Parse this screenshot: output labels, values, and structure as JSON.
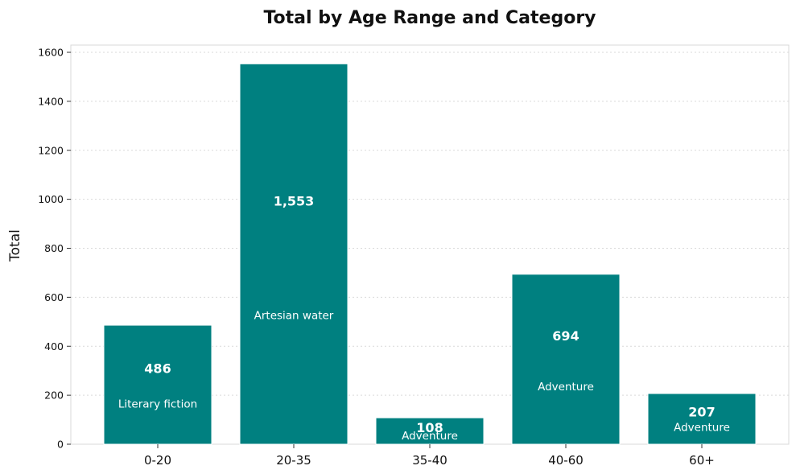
{
  "chart_data": {
    "type": "bar",
    "title": "Total by Age Range and Category",
    "xlabel": "",
    "ylabel": "Total",
    "categories": [
      "0-20",
      "20-35",
      "35-40",
      "40-60",
      "60+"
    ],
    "values": [
      486,
      1553,
      108,
      694,
      207
    ],
    "value_labels": [
      "486",
      "1,553",
      "108",
      "694",
      "207"
    ],
    "bar_categories": [
      "Literary fiction",
      "Artesian water",
      "Adventure",
      "Adventure",
      "Adventure"
    ],
    "ylim": [
      0,
      1600
    ],
    "yticks": [
      0,
      200,
      400,
      600,
      800,
      1000,
      1200,
      1400,
      1600
    ],
    "grid": true,
    "bar_color": "#008080",
    "grid_color": "#d9d9d9"
  }
}
